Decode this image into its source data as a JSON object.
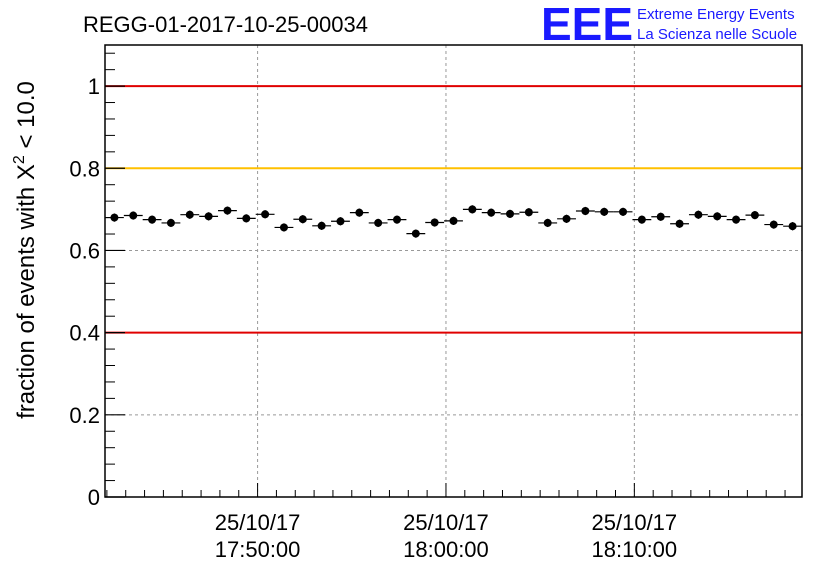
{
  "title": "REGG-01-2017-10-25-00034",
  "logo": {
    "mark": "EEE",
    "line1": "Extreme Energy Events",
    "line2": "La Scienza nelle Scuole"
  },
  "colors": {
    "red_line": "#e00000",
    "orange_line": "#ffc000",
    "logo": "#1a1aff",
    "grid": "#999999",
    "points": "#000000"
  },
  "chart_data": {
    "type": "scatter",
    "title": "REGG-01-2017-10-25-00034",
    "ylabel_prefix": "fraction of events with ",
    "ylabel_symbol": "Χ",
    "ylabel_sup": "2",
    "ylabel_suffix": " < 10.0",
    "ylim": [
      0,
      1.1
    ],
    "yticks": [
      0,
      0.2,
      0.4,
      0.6,
      0.8,
      1
    ],
    "ytick_labels": [
      "0",
      "0.2",
      "0.4",
      "0.6",
      "0.8",
      "1"
    ],
    "xlim_minutes": [
      -8.1,
      28.9
    ],
    "xticks": [
      {
        "minutes": 0,
        "date": "25/10/17",
        "time": "17:50:00"
      },
      {
        "minutes": 10,
        "date": "25/10/17",
        "time": "18:00:00"
      },
      {
        "minutes": 20,
        "date": "25/10/17",
        "time": "18:10:00"
      }
    ],
    "x_reference": "2017-10-25 17:50:00",
    "bin_width_minutes": 1,
    "x_minutes": [
      -7.6,
      -6.6,
      -5.6,
      -4.6,
      -3.6,
      -2.6,
      -1.6,
      -0.6,
      0.4,
      1.4,
      2.4,
      3.4,
      4.4,
      5.4,
      6.4,
      7.4,
      8.4,
      9.4,
      10.4,
      11.4,
      12.4,
      13.4,
      14.4,
      15.4,
      16.4,
      17.4,
      18.4,
      19.4,
      20.4,
      21.4,
      22.4,
      23.4,
      24.4,
      25.4,
      26.4,
      27.4,
      28.4
    ],
    "values": [
      0.68,
      0.685,
      0.675,
      0.667,
      0.687,
      0.683,
      0.697,
      0.678,
      0.688,
      0.656,
      0.676,
      0.66,
      0.671,
      0.692,
      0.667,
      0.675,
      0.641,
      0.668,
      0.672,
      0.7,
      0.692,
      0.689,
      0.693,
      0.667,
      0.677,
      0.696,
      0.694,
      0.694,
      0.675,
      0.682,
      0.665,
      0.687,
      0.683,
      0.675,
      0.686,
      0.663,
      0.659
    ],
    "errors": [
      0.01,
      0.01,
      0.01,
      0.01,
      0.01,
      0.01,
      0.01,
      0.01,
      0.01,
      0.01,
      0.01,
      0.01,
      0.01,
      0.01,
      0.01,
      0.01,
      0.01,
      0.01,
      0.01,
      0.01,
      0.01,
      0.01,
      0.01,
      0.01,
      0.01,
      0.01,
      0.01,
      0.01,
      0.01,
      0.01,
      0.01,
      0.01,
      0.01,
      0.01,
      0.01,
      0.01,
      0.01
    ],
    "reference_lines": [
      {
        "y": 1.0,
        "color": "#e00000"
      },
      {
        "y": 0.8,
        "color": "#ffc000"
      },
      {
        "y": 0.4,
        "color": "#e00000"
      }
    ],
    "grid": true
  }
}
